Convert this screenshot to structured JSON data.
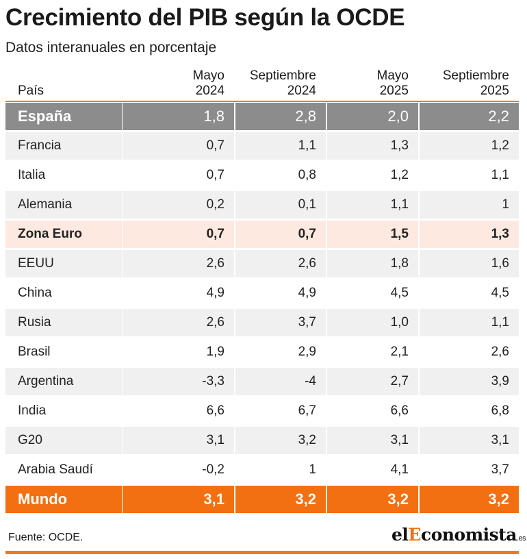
{
  "chart_data": {
    "type": "table",
    "title": "Crecimiento del PIB según la OCDE",
    "subtitle": "Datos interanuales en porcentaje",
    "columns": [
      [
        "País"
      ],
      [
        "Mayo",
        "2024"
      ],
      [
        "Septiembre",
        "2024"
      ],
      [
        "Mayo",
        "2025"
      ],
      [
        "Septiembre",
        "2025"
      ]
    ],
    "rows": [
      {
        "name": "España",
        "values": [
          "1,8",
          "2,8",
          "2,0",
          "2,2"
        ],
        "style": "spain"
      },
      {
        "name": "Francia",
        "values": [
          "0,7",
          "1,1",
          "1,3",
          "1,2"
        ],
        "style": "alt"
      },
      {
        "name": "Italia",
        "values": [
          "0,7",
          "0,8",
          "1,2",
          "1,1"
        ],
        "style": "plain"
      },
      {
        "name": "Alemania",
        "values": [
          "0,2",
          "0,1",
          "1,1",
          "1"
        ],
        "style": "alt"
      },
      {
        "name": "Zona Euro",
        "values": [
          "0,7",
          "0,7",
          "1,5",
          "1,3"
        ],
        "style": "euro"
      },
      {
        "name": "EEUU",
        "values": [
          "2,6",
          "2,6",
          "1,8",
          "1,6"
        ],
        "style": "alt"
      },
      {
        "name": "China",
        "values": [
          "4,9",
          "4,9",
          "4,5",
          "4,5"
        ],
        "style": "plain"
      },
      {
        "name": "Rusia",
        "values": [
          "2,6",
          "3,7",
          "1,0",
          "1,1"
        ],
        "style": "alt"
      },
      {
        "name": "Brasil",
        "values": [
          "1,9",
          "2,9",
          "2,1",
          "2,6"
        ],
        "style": "plain"
      },
      {
        "name": "Argentina",
        "values": [
          "-3,3",
          "-4",
          "2,7",
          "3,9"
        ],
        "style": "alt"
      },
      {
        "name": "India",
        "values": [
          "6,6",
          "6,7",
          "6,6",
          "6,8"
        ],
        "style": "plain"
      },
      {
        "name": "G20",
        "values": [
          "3,1",
          "3,2",
          "3,1",
          "3,1"
        ],
        "style": "alt"
      },
      {
        "name": "Arabia Saudí",
        "values": [
          "-0,2",
          "1",
          "4,1",
          "3,7"
        ],
        "style": "plain"
      },
      {
        "name": "Mundo",
        "values": [
          "3,1",
          "3,2",
          "3,2",
          "3,2"
        ],
        "style": "mundo"
      }
    ]
  },
  "footer": {
    "source": "Fuente: OCDE.",
    "logo_prefix": "el",
    "logo_highlight": "E",
    "logo_rest": "conomista",
    "logo_suffix": ".es"
  },
  "colors": {
    "accent": "#f26f12",
    "spain_row": "#8c8c8c",
    "euro_row": "#fde9e0",
    "alt_row": "#f0f0f0"
  }
}
